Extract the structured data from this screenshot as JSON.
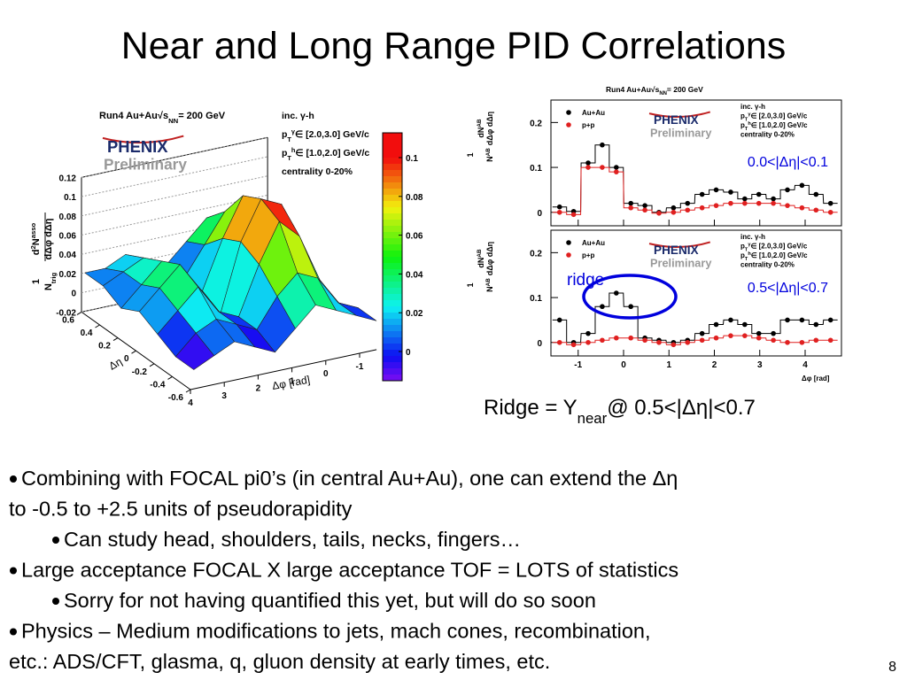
{
  "title": "Near and Long Range PID Correlations",
  "surface_plot": {
    "header": [
      "Run4 Au+Au",
      "√",
      "s",
      "NN",
      "= 200 GeV"
    ],
    "legend": [
      {
        "text": "inc. γ-h"
      },
      {
        "base": "p",
        "sub": "T",
        "sup": "γ",
        "text": "∈ [2.0,3.0] GeV/c"
      },
      {
        "base": "p",
        "sub": "T",
        "sup": "h",
        "text": "∈ [1.0,2.0] GeV/c"
      },
      {
        "text": "centrality 0-20%"
      }
    ],
    "logo": [
      "PH",
      "ENIX",
      "Preliminary"
    ],
    "zlabel": {
      "num": "1",
      "den": "N",
      "den_sub": "trig",
      "dn": "d",
      "dn_sup": "2",
      "N": "N",
      "N_sup": "asso",
      "dd": "dΔφ dΔη"
    },
    "zticks": [
      0.12,
      0.1,
      0.08,
      0.06,
      0.04,
      0.02,
      0,
      -0.02
    ],
    "eta_ticks": [
      0.6,
      0.4,
      0.2,
      0,
      -0.2,
      -0.4,
      -0.6
    ],
    "phi_ticks": [
      4,
      3,
      2,
      1,
      0,
      -1
    ],
    "eta_label": "Δη",
    "phi_label": "Δφ [rad]",
    "color_ticks": [
      0.1,
      0.08,
      0.06,
      0.04,
      0.02,
      0
    ],
    "surface_eta": [
      0.6,
      0.4,
      0.2,
      0,
      -0.2,
      -0.4,
      -0.6
    ],
    "surface_phi": [
      -1.5,
      -0.9,
      -0.3,
      0.3,
      0.9,
      1.5,
      2.1,
      2.7,
      3.3,
      3.9
    ],
    "surface_z": [
      [
        0.02,
        0.03,
        0.04,
        0.05,
        0.03,
        0.01,
        0.02,
        0.03,
        0.02,
        0.02
      ],
      [
        0.02,
        0.03,
        0.06,
        0.07,
        0.04,
        0.01,
        0.02,
        0.04,
        0.03,
        0.02
      ],
      [
        0.01,
        0.03,
        0.08,
        0.1,
        0.06,
        0.01,
        0.03,
        0.05,
        0.03,
        0.01
      ],
      [
        0,
        0.04,
        0.1,
        0.11,
        0.07,
        0,
        0.03,
        0.06,
        0.04,
        0.02
      ],
      [
        0,
        0.03,
        0.08,
        0.1,
        0.06,
        0.01,
        0.02,
        0.05,
        0.03,
        0.01
      ],
      [
        0.01,
        0.02,
        0.05,
        0.06,
        0.04,
        0.01,
        0.02,
        0.03,
        0.02,
        0
      ],
      [
        0.01,
        0.02,
        0.03,
        0.04,
        0.02,
        0,
        0.01,
        0.02,
        0.01,
        0
      ]
    ]
  },
  "panel_header": [
    "Run4 Au+Au",
    "√",
    "s",
    "NN",
    "= 200 GeV"
  ],
  "panel_ylabel": {
    "num": "1",
    "den": "N",
    "den_sup": "AB",
    "dn": "dN",
    "dn_sup": "AB",
    "dd": "dΔφ dΔη"
  },
  "panel_xlabel": "Δφ [rad]",
  "panel_xticks": [
    -1,
    0,
    1,
    2,
    3,
    4
  ],
  "panel_xlim": [
    -1.6,
    4.8
  ],
  "panel_ylim": [
    -0.03,
    0.25
  ],
  "panel_yticks": [
    0,
    0.1,
    0.2
  ],
  "panel_x": [
    -1.41,
    -1.1,
    -0.78,
    -0.47,
    -0.16,
    0.16,
    0.47,
    0.78,
    1.1,
    1.41,
    1.73,
    2.04,
    2.36,
    2.67,
    2.98,
    3.3,
    3.61,
    3.93,
    4.24,
    4.56
  ],
  "panels": [
    {
      "label": "0.0<|Δη|<0.1",
      "series": [
        {
          "name": "Au+Au",
          "color": "#000000",
          "values": [
            0.012,
            0.002,
            0.11,
            0.15,
            0.1,
            0.02,
            0.015,
            0,
            0.01,
            0.02,
            0.04,
            0.05,
            0.045,
            0.03,
            0.04,
            0.03,
            0.05,
            0.06,
            0.04,
            0.02
          ]
        },
        {
          "name": "p+p",
          "color": "#e02020",
          "values": [
            0,
            -0.005,
            0.1,
            0.1,
            0.09,
            0.01,
            0.005,
            -0.002,
            0,
            0.005,
            0.01,
            0.015,
            0.02,
            0.02,
            0.02,
            0.02,
            0.015,
            0.01,
            0.005,
            0
          ]
        }
      ]
    },
    {
      "label": "0.5<|Δη|<0.7",
      "annotation": "ridge",
      "series": [
        {
          "name": "Au+Au",
          "color": "#000000",
          "values": [
            0.05,
            0,
            0.02,
            0.08,
            0.11,
            0.08,
            0.01,
            0.005,
            0,
            0.005,
            0.02,
            0.04,
            0.05,
            0.04,
            0.02,
            0.02,
            0.05,
            0.05,
            0.04,
            0.05
          ]
        },
        {
          "name": "p+p",
          "color": "#e02020",
          "values": [
            0,
            -0.005,
            0,
            0.005,
            0.01,
            0.01,
            0.005,
            0,
            -0.005,
            0,
            0.005,
            0.01,
            0.015,
            0.015,
            0.01,
            0.005,
            0,
            0,
            0.005,
            0.005
          ]
        }
      ]
    }
  ],
  "ridge_text": [
    "Ridge = Y",
    "near",
    "@ 0.5<|Δη|<0.7"
  ],
  "bullets": [
    {
      "level": 1,
      "lines": [
        "Combining with FOCAL pi0’s (in central Au+Au), one can extend the Δη",
        "to -0.5 to +2.5 units of pseudorapidity"
      ]
    },
    {
      "level": 2,
      "lines": [
        "Can study head, shoulders, tails, necks, fingers…"
      ]
    },
    {
      "level": 1,
      "lines": [
        "Large acceptance FOCAL X large acceptance TOF = LOTS of statistics"
      ]
    },
    {
      "level": 2,
      "lines": [
        "Sorry for not having quantified this yet, but will do so soon"
      ]
    },
    {
      "level": 1,
      "lines": [
        "Physics – Medium modifications to jets, mach cones, recombination,",
        "etc.:  ADS/CFT, glasma, q, gluon density at early times, etc."
      ]
    }
  ],
  "page_number": "8"
}
